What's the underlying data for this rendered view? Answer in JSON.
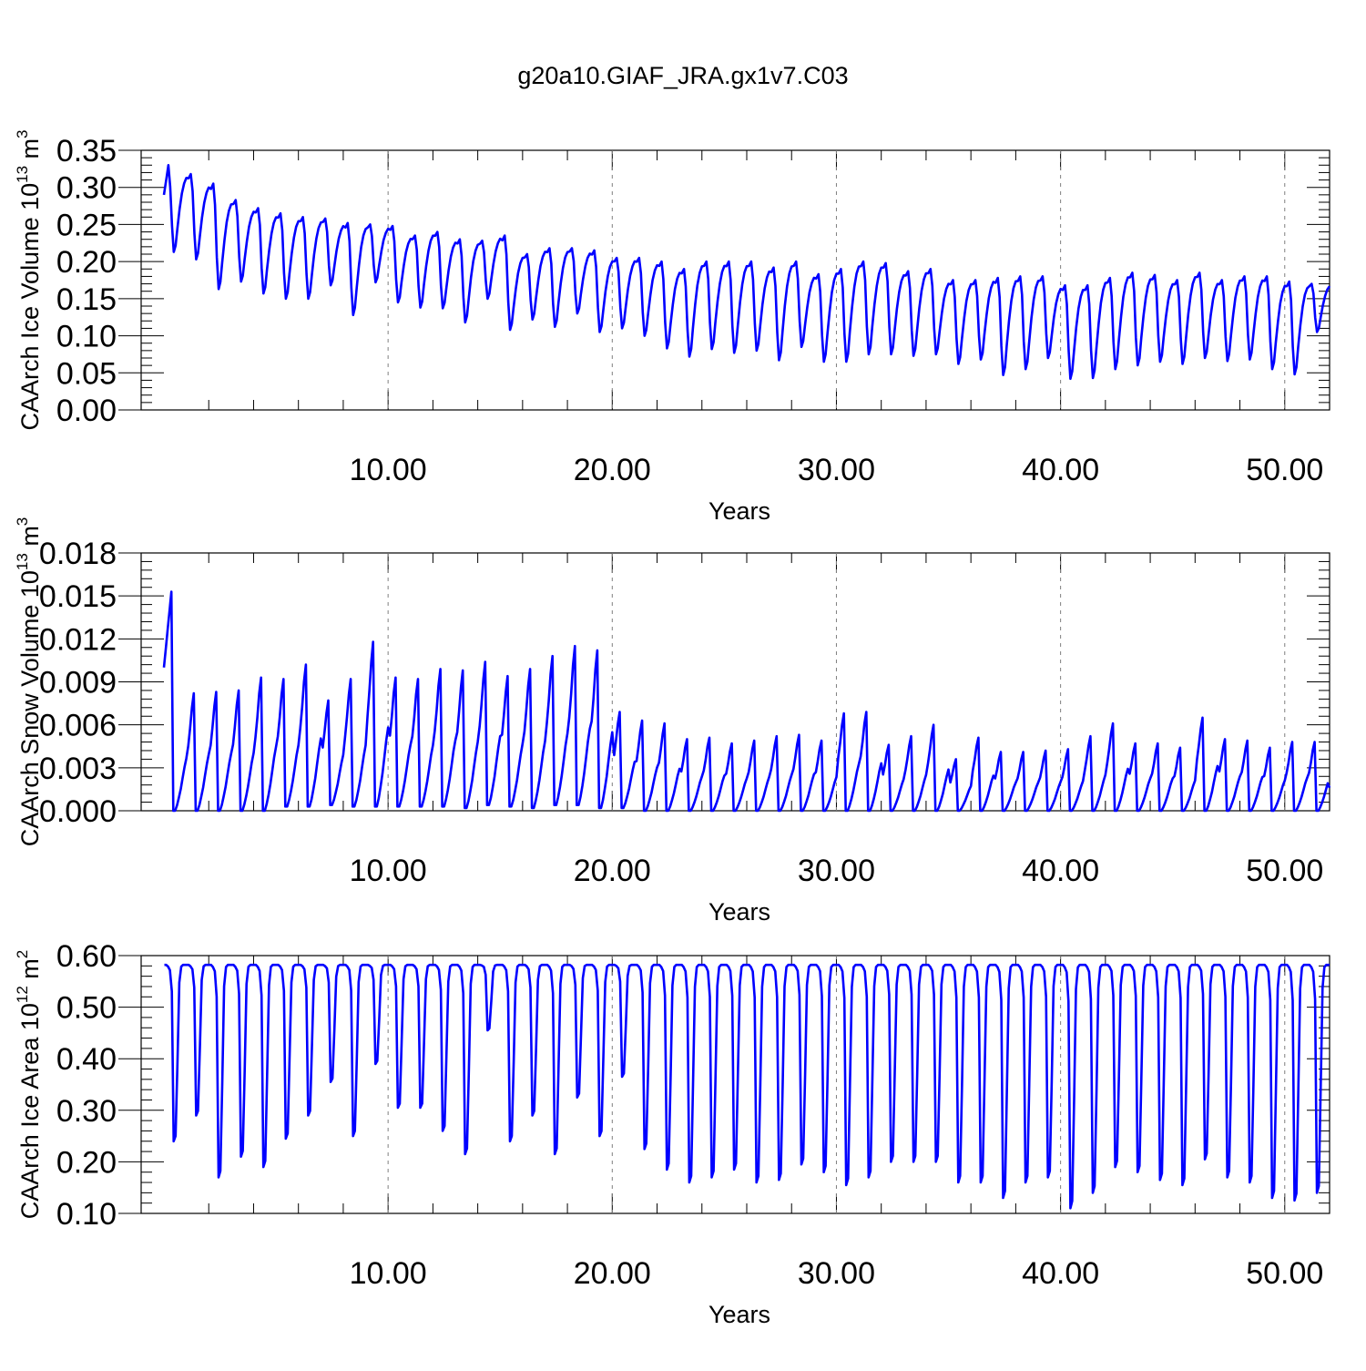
{
  "title": "g20a10.GIAF_JRA.gx1v7.C03",
  "colors": {
    "series": "#0000ff",
    "axis": "#000000",
    "grid": "#7f7f7f"
  },
  "chart_data": [
    {
      "type": "line",
      "ylabel": "CAArch Ice Volume 10",
      "ylabel_sup": "13",
      "ylabel_unit": "m",
      "ylabel_unit_sup": "3",
      "xlabel": "Years",
      "xlim": [
        0,
        52
      ],
      "ylim": [
        0,
        0.35
      ],
      "x_ticks": [
        10,
        20,
        30,
        40,
        50
      ],
      "x_tick_labels": [
        "10.00",
        "20.00",
        "30.00",
        "40.00",
        "50.00"
      ],
      "y_ticks": [
        0,
        0.05,
        0.1,
        0.15,
        0.2,
        0.25,
        0.3,
        0.35
      ],
      "y_tick_labels": [
        "0.00",
        "0.05",
        "0.10",
        "0.15",
        "0.20",
        "0.25",
        "0.30",
        "0.35"
      ],
      "grid": "vertical dashed at major x ticks",
      "seasonal_cycle": {
        "years": [
          1,
          2,
          3,
          4,
          5,
          6,
          7,
          8,
          9,
          10,
          11,
          12,
          13,
          14,
          15,
          16,
          17,
          18,
          19,
          20,
          21,
          22,
          23,
          24,
          25,
          26,
          27,
          28,
          29,
          30,
          31,
          32,
          33,
          34,
          35,
          36,
          37,
          38,
          39,
          40,
          41,
          42,
          43,
          44,
          45,
          46,
          47,
          48,
          49,
          50,
          51,
          52
        ],
        "annual_max": [
          0.33,
          0.318,
          0.305,
          0.283,
          0.272,
          0.265,
          0.26,
          0.258,
          0.252,
          0.25,
          0.248,
          0.235,
          0.24,
          0.23,
          0.228,
          0.235,
          0.21,
          0.218,
          0.218,
          0.215,
          0.205,
          0.205,
          0.2,
          0.19,
          0.2,
          0.2,
          0.2,
          0.192,
          0.2,
          0.183,
          0.19,
          0.2,
          0.198,
          0.187,
          0.19,
          0.175,
          0.175,
          0.178,
          0.18,
          0.18,
          0.168,
          0.168,
          0.178,
          0.185,
          0.182,
          0.175,
          0.185,
          0.175,
          0.18,
          0.18,
          0.173,
          0.17
        ],
        "annual_min": [
          0.213,
          0.203,
          0.163,
          0.173,
          0.157,
          0.15,
          0.15,
          0.168,
          0.128,
          0.172,
          0.145,
          0.138,
          0.137,
          0.118,
          0.15,
          0.108,
          0.122,
          0.112,
          0.13,
          0.105,
          0.11,
          0.1,
          0.083,
          0.072,
          0.082,
          0.077,
          0.08,
          0.067,
          0.085,
          0.065,
          0.065,
          0.075,
          0.075,
          0.073,
          0.075,
          0.062,
          0.068,
          0.047,
          0.055,
          0.07,
          0.042,
          0.043,
          0.055,
          0.06,
          0.065,
          0.062,
          0.07,
          0.066,
          0.068,
          0.055,
          0.048,
          0.105
        ],
        "start_value": 0.29
      }
    },
    {
      "type": "line",
      "ylabel": "CAArch Snow Volume 10",
      "ylabel_sup": "13",
      "ylabel_unit": "m",
      "ylabel_unit_sup": "3",
      "xlabel": "Years",
      "xlim": [
        0,
        52
      ],
      "ylim": [
        0,
        0.018
      ],
      "x_ticks": [
        10,
        20,
        30,
        40,
        50
      ],
      "x_tick_labels": [
        "10.00",
        "20.00",
        "30.00",
        "40.00",
        "50.00"
      ],
      "y_ticks": [
        0,
        0.003,
        0.006,
        0.009,
        0.012,
        0.015,
        0.018
      ],
      "y_tick_labels": [
        "0.000",
        "0.003",
        "0.006",
        "0.009",
        "0.012",
        "0.015",
        "0.018"
      ],
      "grid": "vertical dashed at major x ticks",
      "seasonal_cycle": {
        "years": [
          1,
          2,
          3,
          4,
          5,
          6,
          7,
          8,
          9,
          10,
          11,
          12,
          13,
          14,
          15,
          16,
          17,
          18,
          19,
          20,
          21,
          22,
          23,
          24,
          25,
          26,
          27,
          28,
          29,
          30,
          31,
          32,
          33,
          34,
          35,
          36,
          37,
          38,
          39,
          40,
          41,
          42,
          43,
          44,
          45,
          46,
          47,
          48,
          49,
          50,
          51,
          52
        ],
        "annual_max": [
          0.0153,
          0.0076,
          0.0082,
          0.0083,
          0.0084,
          0.0093,
          0.0092,
          0.0102,
          0.0077,
          0.0092,
          0.0118,
          0.0093,
          0.0092,
          0.0099,
          0.0098,
          0.0104,
          0.0094,
          0.0099,
          0.0108,
          0.0115,
          0.0112,
          0.0069,
          0.0063,
          0.0061,
          0.005,
          0.0051,
          0.0047,
          0.0049,
          0.0052,
          0.0053,
          0.0049,
          0.0068,
          0.0069,
          0.0046,
          0.0052,
          0.006,
          0.0036,
          0.0051,
          0.0041,
          0.0041,
          0.0042,
          0.0043,
          0.0052,
          0.0061,
          0.0047,
          0.0047,
          0.0044,
          0.0065,
          0.005,
          0.0049,
          0.0044,
          0.0048
        ],
        "annual_min": [
          0,
          0,
          0,
          0,
          0,
          0.0003,
          0.0003,
          0.0004,
          0.0003,
          0.0003,
          0.0003,
          0.0003,
          0.0003,
          0.0002,
          0.0004,
          0.0003,
          0.0002,
          0.0004,
          0.0004,
          0.0002,
          0.0002,
          0,
          0,
          0,
          0,
          0,
          0,
          0,
          0,
          0,
          0,
          0,
          0,
          0,
          0,
          0,
          0,
          0,
          0,
          0,
          0,
          0,
          0,
          0,
          0,
          0,
          0,
          0,
          0,
          0,
          0,
          0
        ],
        "start_value": 0.01,
        "end_value": 0.0016
      }
    },
    {
      "type": "line",
      "ylabel": "CAArch Ice Area 10",
      "ylabel_sup": "12",
      "ylabel_unit": "m",
      "ylabel_unit_sup": "2",
      "xlabel": "Years",
      "xlim": [
        0,
        52
      ],
      "ylim": [
        0.1,
        0.6
      ],
      "x_ticks": [
        10,
        20,
        30,
        40,
        50
      ],
      "x_tick_labels": [
        "10.00",
        "20.00",
        "30.00",
        "40.00",
        "50.00"
      ],
      "y_ticks": [
        0.1,
        0.2,
        0.3,
        0.4,
        0.5,
        0.6
      ],
      "y_tick_labels": [
        "0.10",
        "0.20",
        "0.30",
        "0.40",
        "0.50",
        "0.60"
      ],
      "grid": "vertical dashed at major x ticks",
      "seasonal_cycle": {
        "years": [
          1,
          2,
          3,
          4,
          5,
          6,
          7,
          8,
          9,
          10,
          11,
          12,
          13,
          14,
          15,
          16,
          17,
          18,
          19,
          20,
          21,
          22,
          23,
          24,
          25,
          26,
          27,
          28,
          29,
          30,
          31,
          32,
          33,
          34,
          35,
          36,
          37,
          38,
          39,
          40,
          41,
          42,
          43,
          44,
          45,
          46,
          47,
          48,
          49,
          50,
          51,
          52
        ],
        "annual_max": [
          0.582,
          0.582,
          0.582,
          0.582,
          0.582,
          0.582,
          0.582,
          0.582,
          0.582,
          0.582,
          0.582,
          0.582,
          0.582,
          0.582,
          0.582,
          0.582,
          0.582,
          0.582,
          0.582,
          0.582,
          0.582,
          0.582,
          0.582,
          0.582,
          0.582,
          0.582,
          0.582,
          0.582,
          0.582,
          0.582,
          0.582,
          0.582,
          0.582,
          0.582,
          0.582,
          0.582,
          0.582,
          0.582,
          0.582,
          0.582,
          0.582,
          0.582,
          0.582,
          0.582,
          0.582,
          0.582,
          0.582,
          0.582,
          0.582,
          0.582,
          0.582,
          0.582
        ],
        "annual_min": [
          0.24,
          0.29,
          0.17,
          0.21,
          0.19,
          0.245,
          0.29,
          0.355,
          0.25,
          0.39,
          0.305,
          0.305,
          0.26,
          0.215,
          0.455,
          0.24,
          0.29,
          0.215,
          0.325,
          0.25,
          0.365,
          0.225,
          0.185,
          0.16,
          0.17,
          0.185,
          0.16,
          0.165,
          0.195,
          0.18,
          0.155,
          0.17,
          0.2,
          0.2,
          0.2,
          0.16,
          0.16,
          0.13,
          0.16,
          0.17,
          0.11,
          0.14,
          0.19,
          0.18,
          0.165,
          0.155,
          0.205,
          0.17,
          0.16,
          0.13,
          0.125,
          0.14
        ]
      }
    }
  ]
}
